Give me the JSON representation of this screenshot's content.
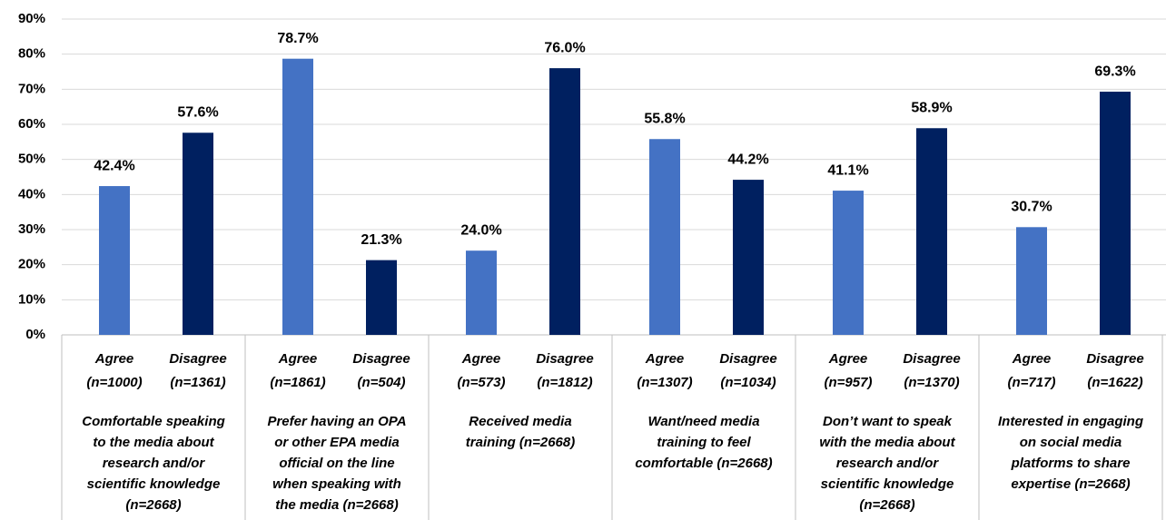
{
  "chart_data": {
    "type": "bar",
    "categories": [
      [
        "Comfortable speaking",
        "to the media about",
        "research and/or",
        "scientific knowledge",
        "(n=2668)"
      ],
      [
        "Prefer having an OPA",
        "or other EPA media",
        "official on the line",
        "when speaking with",
        "the media (n=2668)"
      ],
      [
        "Received media",
        "training (n=2668)"
      ],
      [
        "Want/need media",
        "training to feel",
        "comfortable (n=2668)"
      ],
      [
        "Don’t want to speak",
        "with the media about",
        "research and/or",
        "scientific knowledge",
        "(n=2668)"
      ],
      [
        "Interested in engaging",
        "on social media",
        "platforms to share",
        "expertise (n=2668)"
      ]
    ],
    "series": [
      {
        "name": "Agree",
        "color": "#4472c4",
        "sample_labels": [
          "(n=1000)",
          "(n=1861)",
          "(n=573)",
          "(n=1307)",
          "(n=957)",
          "(n=717)"
        ],
        "values": [
          42.4,
          78.7,
          24.0,
          55.8,
          41.1,
          30.7
        ],
        "value_labels": [
          "42.4%",
          "78.7%",
          "24.0%",
          "55.8%",
          "41.1%",
          "30.7%"
        ]
      },
      {
        "name": "Disagree",
        "color": "#002060",
        "sample_labels": [
          "(n=1361)",
          "(n=504)",
          "(n=1812)",
          "(n=1034)",
          "(n=1370)",
          "(n=1622)"
        ],
        "values": [
          57.6,
          21.3,
          76.0,
          44.2,
          58.9,
          69.3
        ],
        "value_labels": [
          "57.6%",
          "21.3%",
          "76.0%",
          "44.2%",
          "58.9%",
          "69.3%"
        ]
      }
    ],
    "ylim": [
      0,
      90
    ],
    "yticks": [
      {
        "value": 0,
        "label": "0%"
      },
      {
        "value": 10,
        "label": "10%"
      },
      {
        "value": 20,
        "label": "20%"
      },
      {
        "value": 30,
        "label": "30%"
      },
      {
        "value": 40,
        "label": "40%"
      },
      {
        "value": 50,
        "label": "50%"
      },
      {
        "value": 60,
        "label": "60%"
      },
      {
        "value": 70,
        "label": "70%"
      },
      {
        "value": 80,
        "label": "80%"
      },
      {
        "value": 90,
        "label": "90%"
      }
    ],
    "grid": true
  }
}
